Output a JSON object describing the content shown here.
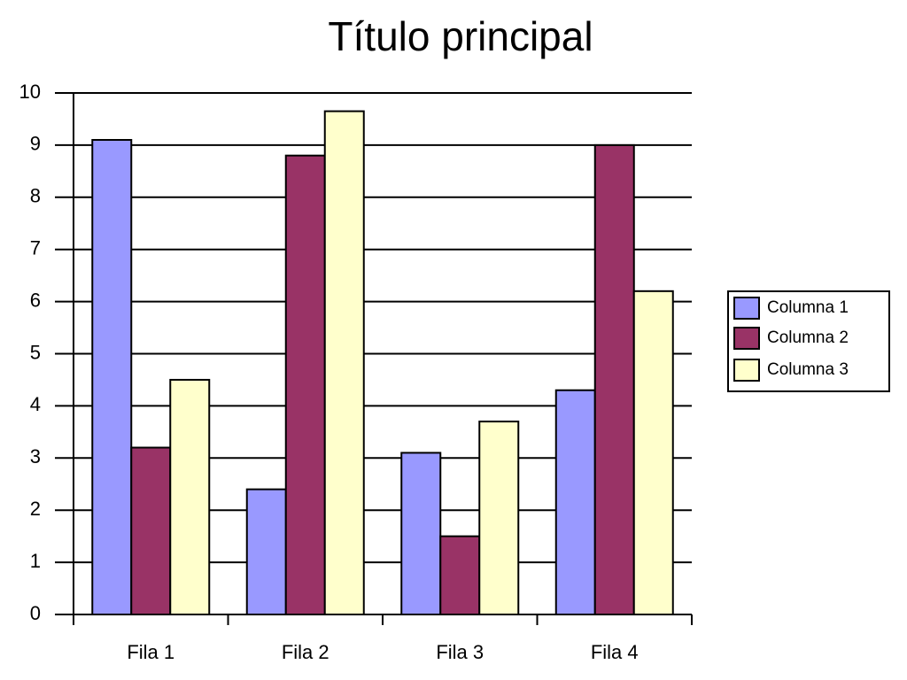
{
  "chart_data": {
    "type": "bar",
    "title": "Título principal",
    "categories": [
      "Fila 1",
      "Fila 2",
      "Fila 3",
      "Fila 4"
    ],
    "series": [
      {
        "name": "Columna 1",
        "color": "#9999ff",
        "values": [
          9.1,
          2.4,
          3.1,
          4.3
        ]
      },
      {
        "name": "Columna 2",
        "color": "#993366",
        "values": [
          3.2,
          8.8,
          1.5,
          9.0
        ]
      },
      {
        "name": "Columna 3",
        "color": "#ffffcc",
        "values": [
          4.5,
          9.65,
          3.7,
          6.2
        ]
      }
    ],
    "ylim": [
      0,
      10
    ],
    "yticks": [
      0,
      1,
      2,
      3,
      4,
      5,
      6,
      7,
      8,
      9,
      10
    ],
    "grid": true,
    "legend": "right"
  }
}
